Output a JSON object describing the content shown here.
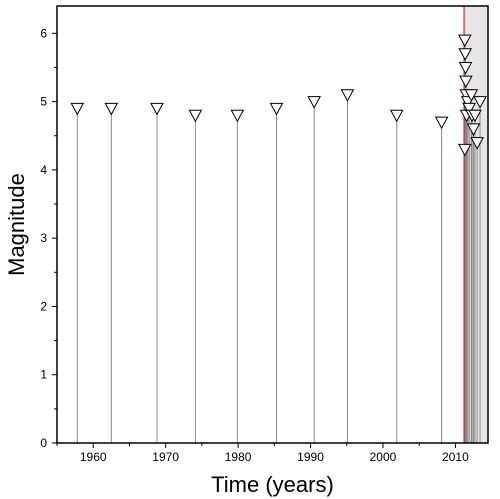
{
  "chart_data": {
    "type": "scatter",
    "xlabel": "Time (years)",
    "ylabel": "Magnitude",
    "xlim": [
      1955,
      2014.5
    ],
    "ylim": [
      0,
      6.4
    ],
    "x_ticks": [
      1960,
      1970,
      1980,
      1990,
      2000,
      2010
    ],
    "x_tick_labels": [
      "1960",
      "1970",
      "1980",
      "1990",
      "2000",
      "2010"
    ],
    "y_ticks": [
      0,
      1,
      2,
      3,
      4,
      5,
      6
    ],
    "y_tick_labels": [
      "0",
      "1",
      "2",
      "3",
      "4",
      "5",
      "6"
    ],
    "grid": false,
    "marker": "inverted-triangle",
    "stem_color": "#888888",
    "marker_color": "#000000",
    "reference_line": {
      "x": 2011.2,
      "color": "#e03030"
    },
    "shaded_region": {
      "x_from": 2011.2,
      "x_to": 2014.5,
      "color": "#e6e6e6"
    },
    "points": [
      {
        "x": 1957.8,
        "y": 4.9
      },
      {
        "x": 1962.5,
        "y": 4.9
      },
      {
        "x": 1968.8,
        "y": 4.9
      },
      {
        "x": 1974.1,
        "y": 4.8
      },
      {
        "x": 1979.9,
        "y": 4.8
      },
      {
        "x": 1985.3,
        "y": 4.9
      },
      {
        "x": 1990.5,
        "y": 5.0
      },
      {
        "x": 1995.1,
        "y": 5.1
      },
      {
        "x": 2001.9,
        "y": 4.8
      },
      {
        "x": 2008.1,
        "y": 4.7
      },
      {
        "x": 2011.3,
        "y": 5.9
      },
      {
        "x": 2011.35,
        "y": 5.7
      },
      {
        "x": 2011.4,
        "y": 5.5
      },
      {
        "x": 2011.45,
        "y": 5.3
      },
      {
        "x": 2011.5,
        "y": 5.1
      },
      {
        "x": 2011.55,
        "y": 4.8
      },
      {
        "x": 2011.3,
        "y": 4.3
      },
      {
        "x": 2011.7,
        "y": 5.0
      },
      {
        "x": 2011.9,
        "y": 4.9
      },
      {
        "x": 2012.2,
        "y": 5.1
      },
      {
        "x": 2012.3,
        "y": 4.8
      },
      {
        "x": 2012.5,
        "y": 4.6
      },
      {
        "x": 2012.7,
        "y": 4.8
      },
      {
        "x": 2013.0,
        "y": 4.4
      },
      {
        "x": 2013.4,
        "y": 5.0
      }
    ]
  }
}
